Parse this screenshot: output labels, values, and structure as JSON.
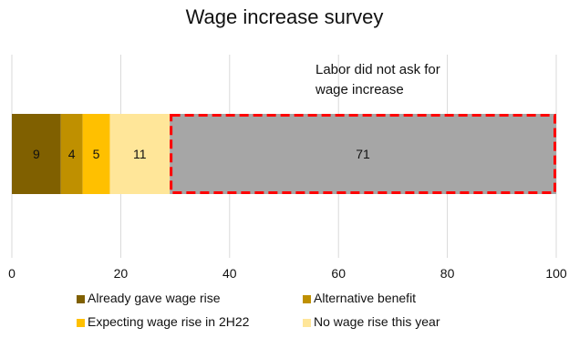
{
  "chart_data": {
    "type": "bar",
    "orientation": "horizontal-stacked",
    "title": "Wage increase survey",
    "xlim": [
      0,
      100
    ],
    "x_ticks": [
      0,
      20,
      40,
      60,
      80,
      100
    ],
    "grid": "vertical",
    "legend_position": "bottom",
    "series": [
      {
        "name": "Already gave wage rise",
        "values": [
          9
        ],
        "color": "#806000"
      },
      {
        "name": "Alternative benefit",
        "values": [
          4
        ],
        "color": "#BF9000"
      },
      {
        "name": "Expecting wage rise in 2H22",
        "values": [
          5
        ],
        "color": "#FFC000"
      },
      {
        "name": "No wage rise this year",
        "values": [
          11
        ],
        "color": "#FFE699"
      },
      {
        "name": "",
        "values": [
          71
        ],
        "color": "#A6A6A6"
      }
    ],
    "annotation": {
      "text_line1": "Labor did not ask for",
      "text_line2": "wage increase",
      "highlight_color": "#FF0000"
    }
  }
}
